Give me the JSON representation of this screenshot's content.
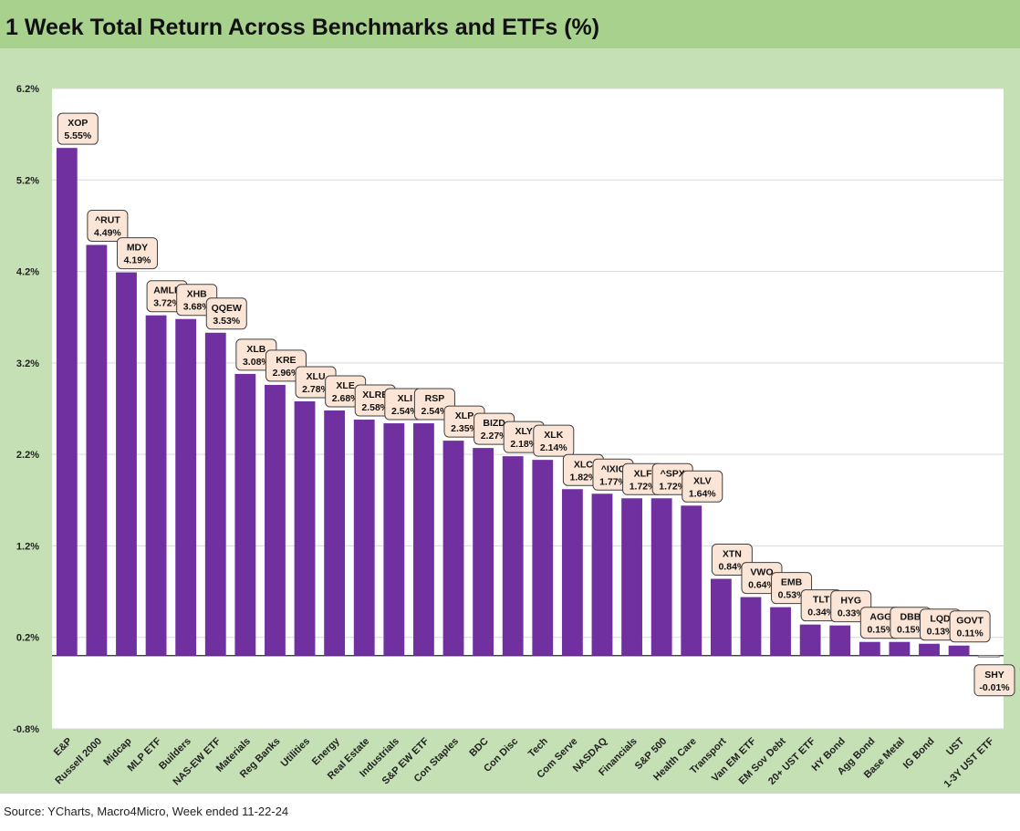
{
  "title": "1 Week Total Return Across Benchmarks and ETFs (%)",
  "source": "Source: YCharts, Macro4Micro, Week ended 11-22-24",
  "colors": {
    "bar": "#7030a0",
    "label_fill": "#fbe5d6",
    "title_bg": "#a9d18e",
    "frame_bg": "#c5e0b4"
  },
  "chart_data": {
    "type": "bar",
    "title": "1 Week Total Return Across Benchmarks and ETFs (%)",
    "xlabel": "",
    "ylabel": "",
    "ylim": [
      -0.8,
      6.2
    ],
    "yticks": [
      "6.2%",
      "5.2%",
      "4.2%",
      "3.2%",
      "2.2%",
      "1.2%",
      "0.2%",
      "-0.8%"
    ],
    "grid": true,
    "categories": [
      "E&P",
      "Russell 2000",
      "Midcap",
      "MLP ETF",
      "Builders",
      "NAS-EW ETF",
      "Materials",
      "Reg Banks",
      "Utilities",
      "Energy",
      "Real Estate",
      "Industrials",
      "S&P EW ETF",
      "Con Staples",
      "BDC",
      "Con Disc",
      "Tech",
      "Com Serve",
      "NASDAQ",
      "Financials",
      "S&P 500",
      "Health Care",
      "Transport",
      "Van EM ETF",
      "EM Sov Debt",
      "20+ UST ETF",
      "HY Bond",
      "Agg Bond",
      "Base Metal",
      "IG Bond",
      "UST",
      "1-3Y UST ETF"
    ],
    "tickers": [
      "XOP",
      "^RUT",
      "MDY",
      "AMLP",
      "XHB",
      "QQEW",
      "XLB",
      "KRE",
      "XLU",
      "XLE",
      "XLRE",
      "XLI",
      "RSP",
      "XLP",
      "BIZD",
      "XLY",
      "XLK",
      "XLC",
      "^IXIC",
      "XLF",
      "^SPX",
      "XLV",
      "XTN",
      "VWO",
      "EMB",
      "TLT",
      "HYG",
      "AGG",
      "DBB",
      "LQD",
      "GOVT",
      "SHY"
    ],
    "values": [
      5.55,
      4.49,
      4.19,
      3.72,
      3.68,
      3.53,
      3.08,
      2.96,
      2.78,
      2.68,
      2.58,
      2.54,
      2.54,
      2.35,
      2.27,
      2.18,
      2.14,
      1.82,
      1.77,
      1.72,
      1.72,
      1.64,
      0.84,
      0.64,
      0.53,
      0.34,
      0.33,
      0.15,
      0.15,
      0.13,
      0.11,
      -0.01
    ],
    "data_labels": [
      "5.55%",
      "4.49%",
      "4.19%",
      "3.72%",
      "3.68%",
      "3.53%",
      "3.08%",
      "2.96%",
      "2.78%",
      "2.68%",
      "2.58%",
      "2.54%",
      "2.54%",
      "2.35%",
      "2.27%",
      "2.18%",
      "2.14%",
      "1.82%",
      "1.77%",
      "1.72%",
      "1.72%",
      "1.64%",
      "0.84%",
      "0.64%",
      "0.53%",
      "0.34%",
      "0.33%",
      "0.15%",
      "0.15%",
      "0.13%",
      "0.11%",
      "-0.01%"
    ]
  }
}
